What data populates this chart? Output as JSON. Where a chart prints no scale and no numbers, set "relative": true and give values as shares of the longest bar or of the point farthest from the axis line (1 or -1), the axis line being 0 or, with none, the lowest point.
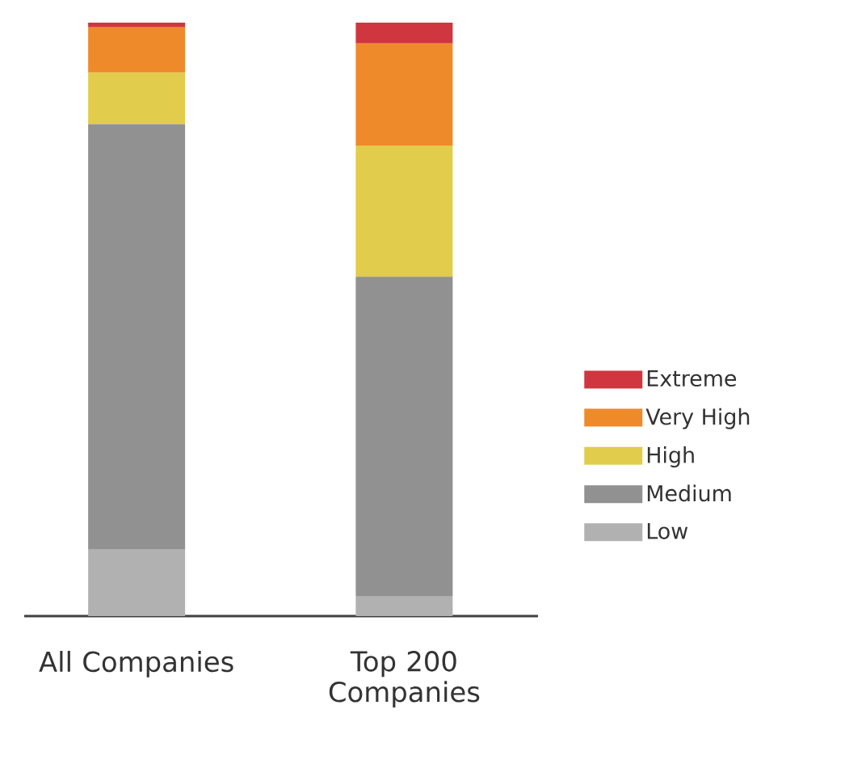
{
  "chart_data": {
    "type": "bar",
    "stacked": true,
    "relative": true,
    "legend": "right",
    "categories": [
      "All Companies",
      "Top 200 Companies"
    ],
    "series": [
      {
        "name": "Low",
        "color": "#b1b1b1",
        "values": [
          0.112,
          0.033
        ]
      },
      {
        "name": "Medium",
        "color": "#919191",
        "values": [
          0.717,
          0.539
        ]
      },
      {
        "name": "High",
        "color": "#e2cc4b",
        "values": [
          0.087,
          0.221
        ]
      },
      {
        "name": "Very High",
        "color": "#ef8a2a",
        "values": [
          0.076,
          0.172
        ]
      },
      {
        "name": "Extreme",
        "color": "#d0363f",
        "values": [
          0.008,
          0.035
        ]
      }
    ]
  }
}
